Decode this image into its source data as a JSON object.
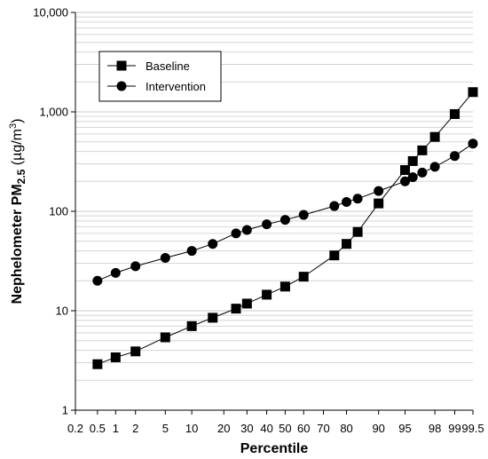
{
  "chart_data": {
    "type": "line",
    "xlabel": "Percentile",
    "ylabel_main": "Nephelometer PM",
    "ylabel_sub": "2.5",
    "ylabel_unit_open": " (µg/m",
    "ylabel_unit_sup": "3",
    "ylabel_unit_close": ")",
    "y_scale": "log",
    "ylim": [
      1,
      10000
    ],
    "y_ticks": [
      {
        "value": 1,
        "label": "1"
      },
      {
        "value": 10,
        "label": "10"
      },
      {
        "value": 100,
        "label": "100"
      },
      {
        "value": 1000,
        "label": "1,000"
      },
      {
        "value": 10000,
        "label": "10,000"
      }
    ],
    "x_scale": "normal-probability",
    "xlim": [
      0.2,
      99.5
    ],
    "x_ticks": [
      {
        "value": 0.2,
        "label": "0.2"
      },
      {
        "value": 0.5,
        "label": "0.5"
      },
      {
        "value": 1,
        "label": "1"
      },
      {
        "value": 2,
        "label": "2"
      },
      {
        "value": 5,
        "label": "5"
      },
      {
        "value": 10,
        "label": "10"
      },
      {
        "value": 20,
        "label": "20"
      },
      {
        "value": 30,
        "label": "30"
      },
      {
        "value": 40,
        "label": "40"
      },
      {
        "value": 50,
        "label": "50"
      },
      {
        "value": 60,
        "label": "60"
      },
      {
        "value": 70,
        "label": "70"
      },
      {
        "value": 80,
        "label": "80"
      },
      {
        "value": 90,
        "label": "90"
      },
      {
        "value": 95,
        "label": "95"
      },
      {
        "value": 98,
        "label": "98"
      },
      {
        "value": 99,
        "label": "99"
      },
      {
        "value": 99.5,
        "label": "99.5"
      }
    ],
    "grid": "horizontal minor and major",
    "legend_position": "top-left",
    "series": [
      {
        "name": "Baseline",
        "marker": "square",
        "points": [
          [
            0.5,
            2.9
          ],
          [
            1,
            3.4
          ],
          [
            2,
            3.9
          ],
          [
            5,
            5.4
          ],
          [
            10,
            7.0
          ],
          [
            16,
            8.5
          ],
          [
            25,
            10.5
          ],
          [
            30,
            11.8
          ],
          [
            40,
            14.5
          ],
          [
            50,
            17.5
          ],
          [
            60,
            22
          ],
          [
            75,
            36
          ],
          [
            80,
            47
          ],
          [
            84,
            62
          ],
          [
            90,
            120
          ],
          [
            95,
            260
          ],
          [
            96,
            320
          ],
          [
            97,
            410
          ],
          [
            98,
            560
          ],
          [
            99,
            950
          ],
          [
            99.5,
            1580
          ]
        ]
      },
      {
        "name": "Intervention",
        "marker": "circle",
        "points": [
          [
            0.5,
            20
          ],
          [
            1,
            24
          ],
          [
            2,
            28
          ],
          [
            5,
            34
          ],
          [
            10,
            40
          ],
          [
            16,
            47
          ],
          [
            25,
            60
          ],
          [
            30,
            65
          ],
          [
            40,
            74
          ],
          [
            50,
            82
          ],
          [
            60,
            92
          ],
          [
            75,
            113
          ],
          [
            80,
            124
          ],
          [
            84,
            134
          ],
          [
            90,
            160
          ],
          [
            95,
            200
          ],
          [
            96,
            220
          ],
          [
            97,
            245
          ],
          [
            98,
            280
          ],
          [
            99,
            360
          ],
          [
            99.5,
            480
          ]
        ]
      }
    ]
  }
}
